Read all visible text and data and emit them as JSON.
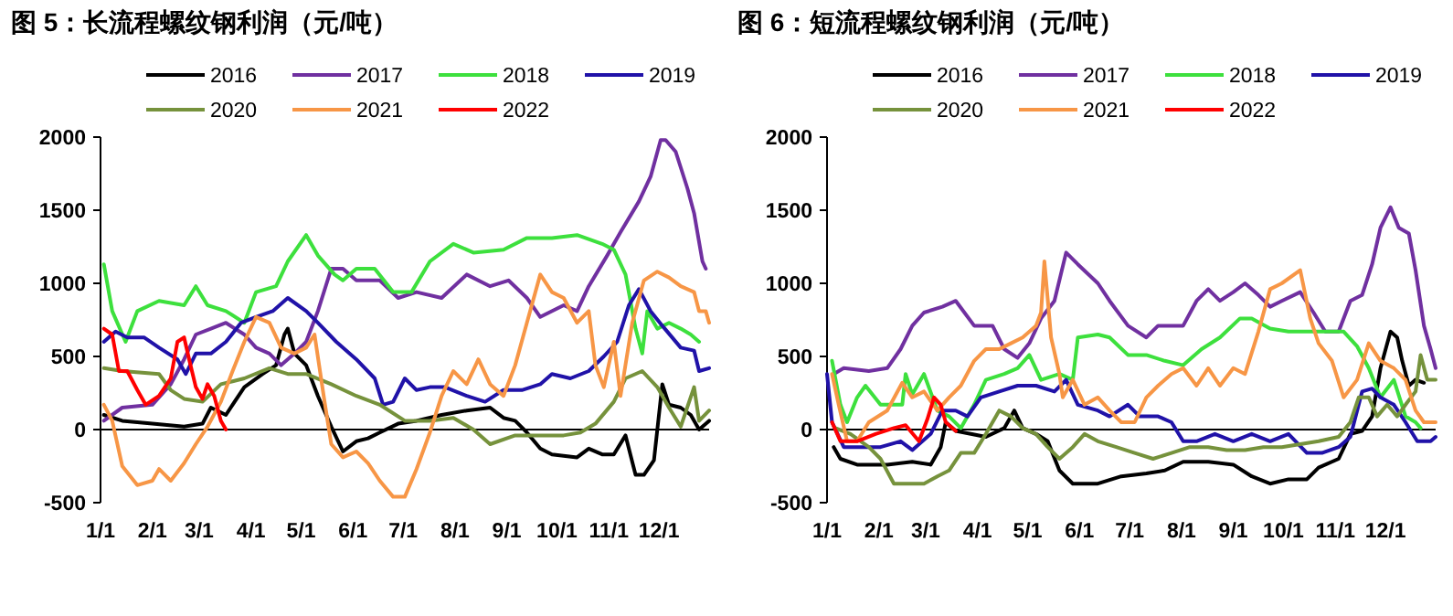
{
  "chart_data": [
    {
      "type": "line",
      "title": "图 5：长流程螺纹钢利润（元/吨）",
      "xlim": [
        "--01-01",
        "--12-31"
      ],
      "ylim": [
        -500,
        2000
      ],
      "yticks": [
        -500,
        0,
        500,
        1000,
        1500,
        2000
      ],
      "xticks": [
        {
          "value": "--01-01",
          "label": "1/1"
        },
        {
          "value": "--02-01",
          "label": "2/1"
        },
        {
          "value": "--03-01",
          "label": "3/1"
        },
        {
          "value": "--04-01",
          "label": "4/1"
        },
        {
          "value": "--05-01",
          "label": "5/1"
        },
        {
          "value": "--06-01",
          "label": "6/1"
        },
        {
          "value": "--07-01",
          "label": "7/1"
        },
        {
          "value": "--08-01",
          "label": "8/1"
        },
        {
          "value": "--09-01",
          "label": "9/1"
        },
        {
          "value": "--10-01",
          "label": "10/1"
        },
        {
          "value": "--11-01",
          "label": "11/1"
        },
        {
          "value": "--12-01",
          "label": "12/1"
        }
      ],
      "grid": false,
      "legend": "top",
      "ref_lines": [
        {
          "axis": "y",
          "value": 0,
          "color": "#000000"
        }
      ],
      "series": [
        {
          "name": "2016",
          "color": "#000000",
          "x": [
            "--01-03",
            "--01-14",
            "--02-01",
            "--02-20",
            "--03-03",
            "--03-08",
            "--03-17",
            "--03-21",
            "--03-28",
            "--04-08",
            "--04-16",
            "--04-21",
            "--04-23",
            "--04-27",
            "--05-04",
            "--05-11",
            "--05-19",
            "--05-26",
            "--06-03",
            "--06-10",
            "--06-17",
            "--06-28",
            "--07-09",
            "--07-24",
            "--08-08",
            "--08-22",
            "--08-30",
            "--09-06",
            "--09-13",
            "--09-21",
            "--09-28",
            "--10-13",
            "--10-20",
            "--10-28",
            "--11-04",
            "--11-11",
            "--11-17",
            "--11-22",
            "--11-28",
            "--12-03",
            "--12-07",
            "--12-14",
            "--12-20",
            "--12-25",
            "--12-31"
          ],
          "values": [
            100,
            60,
            40,
            20,
            40,
            150,
            100,
            170,
            290,
            380,
            440,
            650,
            690,
            520,
            440,
            230,
            20,
            -150,
            -80,
            -60,
            -20,
            40,
            60,
            100,
            130,
            150,
            80,
            60,
            -20,
            -130,
            -170,
            -190,
            -130,
            -170,
            -170,
            -40,
            -310,
            -310,
            -210,
            310,
            170,
            150,
            100,
            0,
            60
          ]
        },
        {
          "name": "2017",
          "color": "#7030a0",
          "x": [
            "--01-03",
            "--01-14",
            "--02-01",
            "--02-12",
            "--02-20",
            "--02-27",
            "--03-08",
            "--03-17",
            "--03-28",
            "--04-04",
            "--04-12",
            "--04-19",
            "--04-27",
            "--05-04",
            "--05-11",
            "--05-19",
            "--05-26",
            "--06-03",
            "--06-17",
            "--06-28",
            "--07-09",
            "--07-24",
            "--08-08",
            "--08-22",
            "--09-02",
            "--09-13",
            "--09-21",
            "--10-05",
            "--10-13",
            "--10-20",
            "--10-31",
            "--11-08",
            "--11-19",
            "--11-26",
            "--12-02",
            "--12-05",
            "--12-11",
            "--12-18",
            "--12-22",
            "--12-27",
            "--12-29"
          ],
          "values": [
            60,
            150,
            170,
            310,
            480,
            650,
            690,
            730,
            650,
            560,
            520,
            440,
            520,
            600,
            810,
            1100,
            1100,
            1020,
            1020,
            900,
            940,
            900,
            1060,
            980,
            1020,
            900,
            770,
            850,
            810,
            980,
            1190,
            1350,
            1560,
            1730,
            1980,
            1980,
            1900,
            1650,
            1480,
            1150,
            1100
          ]
        },
        {
          "name": "2018",
          "color": "#3de03d",
          "x": [
            "--01-03",
            "--01-08",
            "--01-16",
            "--01-23",
            "--02-05",
            "--02-20",
            "--02-27",
            "--03-06",
            "--03-17",
            "--03-28",
            "--04-04",
            "--04-16",
            "--04-23",
            "--05-04",
            "--05-11",
            "--05-21",
            "--05-26",
            "--06-03",
            "--06-14",
            "--06-25",
            "--07-06",
            "--07-17",
            "--07-31",
            "--08-12",
            "--08-30",
            "--09-13",
            "--09-28",
            "--10-13",
            "--10-28",
            "--11-04",
            "--11-11",
            "--11-17",
            "--11-21",
            "--11-24",
            "--11-30",
            "--12-07",
            "--12-14",
            "--12-20",
            "--12-25"
          ],
          "values": [
            1130,
            810,
            600,
            810,
            880,
            850,
            980,
            850,
            810,
            730,
            940,
            980,
            1150,
            1330,
            1190,
            1060,
            1020,
            1100,
            1100,
            940,
            940,
            1150,
            1270,
            1210,
            1230,
            1310,
            1310,
            1330,
            1270,
            1230,
            1060,
            690,
            520,
            810,
            690,
            730,
            690,
            650,
            600
          ]
        },
        {
          "name": "2019",
          "color": "#2012a8",
          "x": [
            "--01-03",
            "--01-10",
            "--01-17",
            "--01-27",
            "--02-05",
            "--02-16",
            "--02-21",
            "--02-27",
            "--03-08",
            "--03-17",
            "--03-26",
            "--04-04",
            "--04-14",
            "--04-23",
            "--05-04",
            "--05-11",
            "--05-22",
            "--06-03",
            "--06-14",
            "--06-19",
            "--06-25",
            "--07-02",
            "--07-09",
            "--07-17",
            "--07-26",
            "--08-08",
            "--08-19",
            "--08-30",
            "--09-10",
            "--09-21",
            "--09-28",
            "--10-09",
            "--10-20",
            "--10-29",
            "--11-06",
            "--11-13",
            "--11-19",
            "--11-26",
            "--12-03",
            "--12-14",
            "--12-22",
            "--12-25",
            "--12-31"
          ],
          "values": [
            600,
            670,
            630,
            630,
            560,
            480,
            380,
            520,
            520,
            600,
            730,
            770,
            810,
            900,
            810,
            730,
            600,
            480,
            350,
            170,
            190,
            350,
            270,
            290,
            290,
            230,
            190,
            270,
            270,
            310,
            380,
            350,
            400,
            500,
            600,
            850,
            960,
            810,
            710,
            560,
            540,
            400,
            420
          ]
        },
        {
          "name": "2020",
          "color": "#76923c",
          "x": [
            "--01-03",
            "--01-14",
            "--02-05",
            "--02-12",
            "--02-20",
            "--03-03",
            "--03-14",
            "--03-28",
            "--04-12",
            "--04-23",
            "--05-04",
            "--05-19",
            "--06-03",
            "--06-17",
            "--07-02",
            "--07-17",
            "--07-31",
            "--08-12",
            "--08-22",
            "--09-06",
            "--09-21",
            "--10-05",
            "--10-15",
            "--10-24",
            "--11-04",
            "--11-11",
            "--11-21",
            "--11-30",
            "--12-07",
            "--12-14",
            "--12-22",
            "--12-25",
            "--12-31"
          ],
          "values": [
            420,
            400,
            380,
            270,
            210,
            190,
            310,
            350,
            420,
            380,
            380,
            310,
            230,
            170,
            60,
            60,
            80,
            0,
            -100,
            -40,
            -40,
            -40,
            -20,
            40,
            190,
            350,
            400,
            290,
            150,
            20,
            290,
            60,
            130
          ]
        },
        {
          "name": "2021",
          "color": "#f79646",
          "x": [
            "--01-03",
            "--01-08",
            "--01-14",
            "--01-23",
            "--02-01",
            "--02-05",
            "--02-12",
            "--02-20",
            "--02-27",
            "--03-06",
            "--03-14",
            "--03-21",
            "--03-28",
            "--04-04",
            "--04-12",
            "--04-19",
            "--04-27",
            "--05-04",
            "--05-09",
            "--05-15",
            "--05-19",
            "--05-26",
            "--06-03",
            "--06-10",
            "--06-17",
            "--06-25",
            "--07-02",
            "--07-09",
            "--07-17",
            "--07-24",
            "--07-31",
            "--08-08",
            "--08-15",
            "--08-22",
            "--08-30",
            "--09-06",
            "--09-13",
            "--09-21",
            "--09-28",
            "--10-05",
            "--10-13",
            "--10-20",
            "--10-24",
            "--10-29",
            "--11-04",
            "--11-08",
            "--11-15",
            "--11-22",
            "--11-30",
            "--12-07",
            "--12-14",
            "--12-22",
            "--12-25",
            "--12-29",
            "--12-31"
          ],
          "values": [
            170,
            60,
            -250,
            -380,
            -350,
            -270,
            -350,
            -230,
            -100,
            20,
            190,
            400,
            600,
            770,
            730,
            560,
            520,
            560,
            650,
            190,
            -100,
            -190,
            -150,
            -230,
            -350,
            -460,
            -460,
            -270,
            -20,
            230,
            400,
            310,
            480,
            310,
            230,
            440,
            730,
            1060,
            940,
            900,
            730,
            810,
            440,
            290,
            600,
            230,
            730,
            1020,
            1080,
            1040,
            980,
            940,
            810,
            810,
            730
          ]
        },
        {
          "name": "2022",
          "color": "#ff0000",
          "x": [
            "--01-03",
            "--01-08",
            "--01-12",
            "--01-17",
            "--01-23",
            "--01-28",
            "--02-05",
            "--02-12",
            "--02-16",
            "--02-20",
            "--02-23",
            "--02-27",
            "--03-03",
            "--03-06",
            "--03-10",
            "--03-14",
            "--03-17"
          ],
          "values": [
            690,
            650,
            400,
            400,
            270,
            170,
            230,
            350,
            600,
            630,
            480,
            290,
            210,
            310,
            230,
            60,
            0
          ]
        }
      ]
    },
    {
      "type": "line",
      "title": "图 6：短流程螺纹钢利润（元/吨）",
      "xlim": [
        "--01-01",
        "--12-31"
      ],
      "ylim": [
        -500,
        2000
      ],
      "yticks": [
        -500,
        0,
        500,
        1000,
        1500,
        2000
      ],
      "xticks": [
        {
          "value": "--01-01",
          "label": "1/1"
        },
        {
          "value": "--02-01",
          "label": "2/1"
        },
        {
          "value": "--03-01",
          "label": "3/1"
        },
        {
          "value": "--04-01",
          "label": "4/1"
        },
        {
          "value": "--05-01",
          "label": "5/1"
        },
        {
          "value": "--06-01",
          "label": "6/1"
        },
        {
          "value": "--07-01",
          "label": "7/1"
        },
        {
          "value": "--08-01",
          "label": "8/1"
        },
        {
          "value": "--09-01",
          "label": "9/1"
        },
        {
          "value": "--10-01",
          "label": "10/1"
        },
        {
          "value": "--11-01",
          "label": "11/1"
        },
        {
          "value": "--12-01",
          "label": "12/1"
        }
      ],
      "grid": false,
      "legend": "top",
      "ref_lines": [
        {
          "axis": "y",
          "value": 0,
          "color": "#000000"
        }
      ],
      "series": [
        {
          "name": "2016",
          "color": "#000000",
          "x": [
            "--01-05",
            "--01-09",
            "--01-19",
            "--02-06",
            "--02-21",
            "--03-04",
            "--03-10",
            "--03-13",
            "--03-19",
            "--03-28",
            "--04-06",
            "--04-17",
            "--04-23",
            "--04-28",
            "--05-06",
            "--05-13",
            "--05-20",
            "--05-28",
            "--06-12",
            "--06-26",
            "--07-11",
            "--07-22",
            "--08-02",
            "--08-17",
            "--09-01",
            "--09-12",
            "--09-23",
            "--10-04",
            "--10-15",
            "--10-22",
            "--11-03",
            "--11-10",
            "--11-17",
            "--11-23",
            "--11-28",
            "--12-04",
            "--12-08",
            "--12-11",
            "--12-15",
            "--12-19",
            "--12-24"
          ],
          "values": [
            -120,
            -200,
            -240,
            -240,
            -220,
            -240,
            -120,
            50,
            -10,
            -30,
            -50,
            10,
            130,
            10,
            -30,
            -80,
            -280,
            -370,
            -370,
            -320,
            -300,
            -280,
            -220,
            -220,
            -240,
            -320,
            -370,
            -340,
            -340,
            -260,
            -200,
            -30,
            -10,
            90,
            420,
            670,
            630,
            470,
            300,
            340,
            320
          ]
        },
        {
          "name": "2017",
          "color": "#7030a0",
          "x": [
            "--01-05",
            "--01-11",
            "--01-26",
            "--02-06",
            "--02-14",
            "--02-21",
            "--02-28",
            "--03-11",
            "--03-19",
            "--03-30",
            "--04-10",
            "--04-17",
            "--04-25",
            "--05-02",
            "--05-09",
            "--05-17",
            "--05-24",
            "--05-31",
            "--06-12",
            "--06-19",
            "--06-30",
            "--07-11",
            "--07-18",
            "--08-02",
            "--08-10",
            "--08-17",
            "--08-24",
            "--09-01",
            "--09-08",
            "--09-16",
            "--09-23",
            "--09-30",
            "--10-11",
            "--10-19",
            "--10-26",
            "--11-03",
            "--11-10",
            "--11-17",
            "--11-23",
            "--11-28",
            "--12-04",
            "--12-09",
            "--12-15",
            "--12-19",
            "--12-24",
            "--12-28",
            "--12-31"
          ],
          "values": [
            380,
            420,
            400,
            420,
            550,
            710,
            800,
            840,
            880,
            710,
            710,
            550,
            490,
            590,
            760,
            880,
            1210,
            1130,
            1000,
            880,
            710,
            630,
            710,
            710,
            880,
            960,
            880,
            940,
            1000,
            920,
            840,
            880,
            940,
            800,
            670,
            670,
            880,
            920,
            1130,
            1380,
            1520,
            1380,
            1340,
            1090,
            710,
            550,
            420
          ]
        },
        {
          "name": "2018",
          "color": "#3de03d",
          "x": [
            "--01-04",
            "--01-09",
            "--01-13",
            "--01-19",
            "--01-24",
            "--02-02",
            "--02-15",
            "--02-17",
            "--02-21",
            "--02-28",
            "--03-08",
            "--03-15",
            "--03-22",
            "--03-30",
            "--04-06",
            "--04-17",
            "--04-25",
            "--05-02",
            "--05-09",
            "--05-20",
            "--05-28",
            "--05-31",
            "--06-12",
            "--06-19",
            "--06-30",
            "--07-11",
            "--07-22",
            "--08-02",
            "--08-13",
            "--08-24",
            "--09-05",
            "--09-12",
            "--09-23",
            "--10-04",
            "--10-15",
            "--10-26",
            "--11-06",
            "--11-14",
            "--11-21",
            "--11-28",
            "--12-06",
            "--12-13",
            "--12-19",
            "--12-22"
          ],
          "values": [
            470,
            170,
            50,
            220,
            300,
            170,
            170,
            380,
            240,
            380,
            130,
            90,
            10,
            170,
            340,
            380,
            420,
            510,
            340,
            380,
            340,
            630,
            650,
            630,
            510,
            510,
            470,
            440,
            550,
            630,
            760,
            760,
            690,
            670,
            670,
            670,
            670,
            570,
            420,
            220,
            340,
            90,
            50,
            10
          ]
        },
        {
          "name": "2019",
          "color": "#2012a8",
          "x": [
            "--01-01",
            "--01-04",
            "--01-11",
            "--01-22",
            "--02-02",
            "--02-14",
            "--02-21",
            "--03-04",
            "--03-11",
            "--03-19",
            "--03-26",
            "--04-03",
            "--04-14",
            "--04-25",
            "--05-06",
            "--05-17",
            "--05-24",
            "--05-31",
            "--06-12",
            "--06-19",
            "--06-30",
            "--07-07",
            "--07-18",
            "--07-26",
            "--08-02",
            "--08-10",
            "--08-21",
            "--09-01",
            "--09-12",
            "--09-23",
            "--10-04",
            "--10-15",
            "--10-24",
            "--11-03",
            "--11-10",
            "--11-17",
            "--11-23",
            "--11-28",
            "--12-06",
            "--12-13",
            "--12-20",
            "--12-28",
            "--12-31"
          ],
          "values": [
            380,
            50,
            -120,
            -120,
            -120,
            -80,
            -140,
            -30,
            130,
            130,
            90,
            220,
            260,
            300,
            300,
            260,
            340,
            170,
            130,
            90,
            170,
            90,
            90,
            50,
            -80,
            -80,
            -30,
            -80,
            -30,
            -80,
            -30,
            -160,
            -160,
            -120,
            -50,
            260,
            280,
            220,
            170,
            50,
            -80,
            -80,
            -50
          ]
        },
        {
          "name": "2020",
          "color": "#76923c",
          "x": [
            "--01-06",
            "--01-15",
            "--01-26",
            "--02-02",
            "--02-10",
            "--02-21",
            "--02-28",
            "--03-08",
            "--03-15",
            "--03-22",
            "--03-30",
            "--04-06",
            "--04-14",
            "--04-21",
            "--04-28",
            "--05-06",
            "--05-13",
            "--05-20",
            "--05-28",
            "--06-04",
            "--06-12",
            "--06-23",
            "--07-04",
            "--07-15",
            "--07-26",
            "--08-06",
            "--08-17",
            "--08-28",
            "--09-08",
            "--09-19",
            "--09-30",
            "--10-11",
            "--10-22",
            "--11-03",
            "--11-10",
            "--11-15",
            "--11-21",
            "--11-26",
            "--12-02",
            "--12-08",
            "--12-13",
            "--12-19",
            "--12-22",
            "--12-26",
            "--12-31"
          ],
          "values": [
            10,
            -30,
            -120,
            -200,
            -370,
            -370,
            -370,
            -320,
            -280,
            -160,
            -160,
            -30,
            130,
            90,
            10,
            -30,
            -120,
            -200,
            -120,
            -30,
            -80,
            -120,
            -160,
            -200,
            -160,
            -120,
            -120,
            -140,
            -140,
            -120,
            -120,
            -100,
            -80,
            -50,
            50,
            220,
            220,
            90,
            170,
            90,
            170,
            260,
            510,
            340,
            340
          ]
        },
        {
          "name": "2021",
          "color": "#f79646",
          "x": [
            "--01-04",
            "--01-08",
            "--01-13",
            "--01-19",
            "--01-26",
            "--02-06",
            "--02-15",
            "--02-21",
            "--02-28",
            "--03-08",
            "--03-15",
            "--03-22",
            "--03-30",
            "--04-06",
            "--04-14",
            "--04-21",
            "--04-28",
            "--05-06",
            "--05-09",
            "--05-11",
            "--05-15",
            "--05-20",
            "--05-22",
            "--05-28",
            "--06-04",
            "--06-12",
            "--06-19",
            "--06-26",
            "--07-04",
            "--07-11",
            "--07-18",
            "--07-26",
            "--08-02",
            "--08-10",
            "--08-17",
            "--08-24",
            "--09-01",
            "--09-08",
            "--09-16",
            "--09-23",
            "--09-30",
            "--10-11",
            "--10-17",
            "--10-22",
            "--10-30",
            "--11-06",
            "--11-14",
            "--11-21",
            "--11-28",
            "--12-06",
            "--12-13",
            "--12-19",
            "--12-24",
            "--12-31"
          ],
          "values": [
            380,
            170,
            -80,
            -80,
            50,
            130,
            320,
            220,
            260,
            130,
            220,
            300,
            470,
            550,
            550,
            590,
            630,
            710,
            800,
            1150,
            630,
            380,
            220,
            340,
            170,
            220,
            130,
            50,
            50,
            220,
            300,
            380,
            420,
            300,
            420,
            300,
            420,
            380,
            670,
            960,
            1000,
            1090,
            760,
            590,
            470,
            220,
            340,
            590,
            470,
            420,
            340,
            130,
            50,
            50
          ]
        },
        {
          "name": "2022",
          "color": "#ff0000",
          "x": [
            "--01-04",
            "--01-09",
            "--01-19",
            "--01-30",
            "--02-10",
            "--02-17",
            "--02-25",
            "--03-02",
            "--03-06",
            "--03-10",
            "--03-13",
            "--03-19"
          ],
          "values": [
            50,
            -80,
            -80,
            -30,
            10,
            30,
            -80,
            70,
            220,
            170,
            50,
            -10
          ]
        }
      ]
    }
  ]
}
